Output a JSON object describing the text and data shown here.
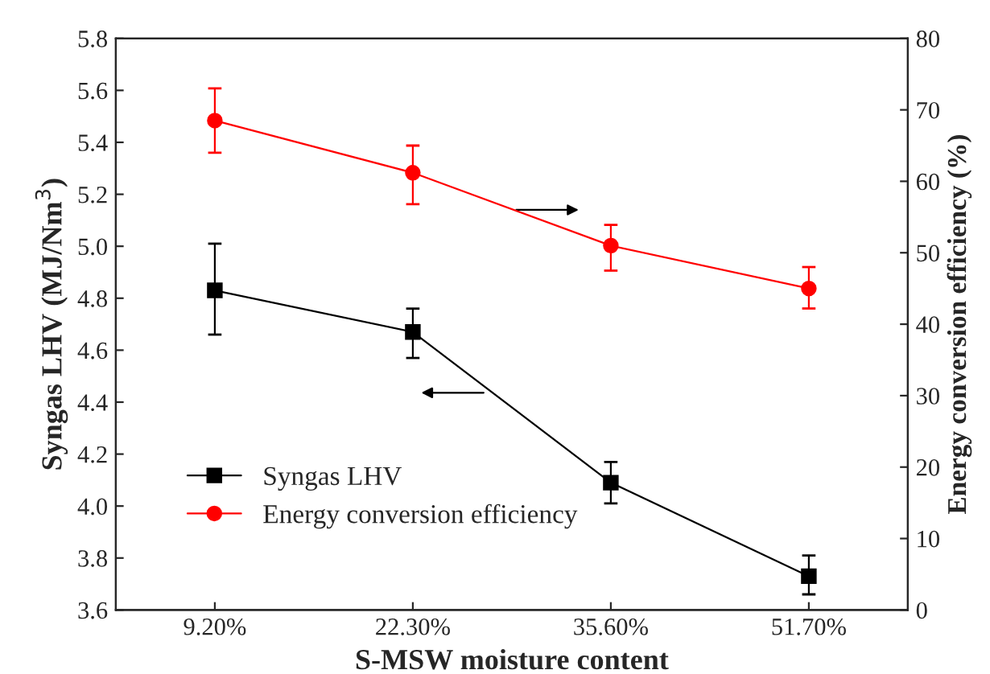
{
  "chart_data": {
    "type": "line",
    "xlabel": "S-MSW moisture content",
    "ylabel": "Syngas LHV (MJ/Nm$^{3}$)",
    "y2label": "Energy conversion efficiency (%)",
    "categories": [
      "9.20%",
      "22.30%",
      "35.60%",
      "51.70%"
    ],
    "series": [
      {
        "name": "Syngas LHV",
        "color": "#000000",
        "marker": "square",
        "values": [
          4.83,
          4.67,
          4.09,
          3.73
        ],
        "errors": [
          [
            4.66,
            5.01
          ],
          [
            4.57,
            4.76
          ],
          [
            4.01,
            4.17
          ],
          [
            3.66,
            3.81
          ]
        ]
      },
      {
        "name": "Energy conversion efficiency",
        "color": "#ff0000",
        "marker": "circle",
        "axis": "y2",
        "values": [
          68.5,
          61.2,
          51,
          45
        ],
        "errors": [
          [
            64,
            73
          ],
          [
            56.8,
            65
          ],
          [
            47.5,
            53.9
          ],
          [
            42.2,
            48
          ]
        ]
      }
    ],
    "ylim": [
      3.6,
      5.8
    ],
    "yticks": [
      {
        "value": 3.6,
        "label": "3.6"
      },
      {
        "value": 3.8,
        "label": "3.8"
      },
      {
        "value": 4.0,
        "label": "4.0"
      },
      {
        "value": 4.2,
        "label": "4.2"
      },
      {
        "value": 4.4,
        "label": "4.4"
      },
      {
        "value": 4.6,
        "label": "4.6"
      },
      {
        "value": 4.8,
        "label": "4.8"
      },
      {
        "value": 5.0,
        "label": "5.0"
      },
      {
        "value": 5.2,
        "label": "5.2"
      },
      {
        "value": 5.4,
        "label": "5.4"
      },
      {
        "value": 5.6,
        "label": "5.6"
      },
      {
        "value": 5.8,
        "label": "5.8"
      }
    ],
    "y2lim": [
      0,
      80
    ],
    "y2ticks": [
      0,
      10,
      20,
      30,
      40,
      50,
      60,
      70,
      80
    ],
    "grid": false,
    "legend": "bottom left",
    "line_style": "solid"
  }
}
